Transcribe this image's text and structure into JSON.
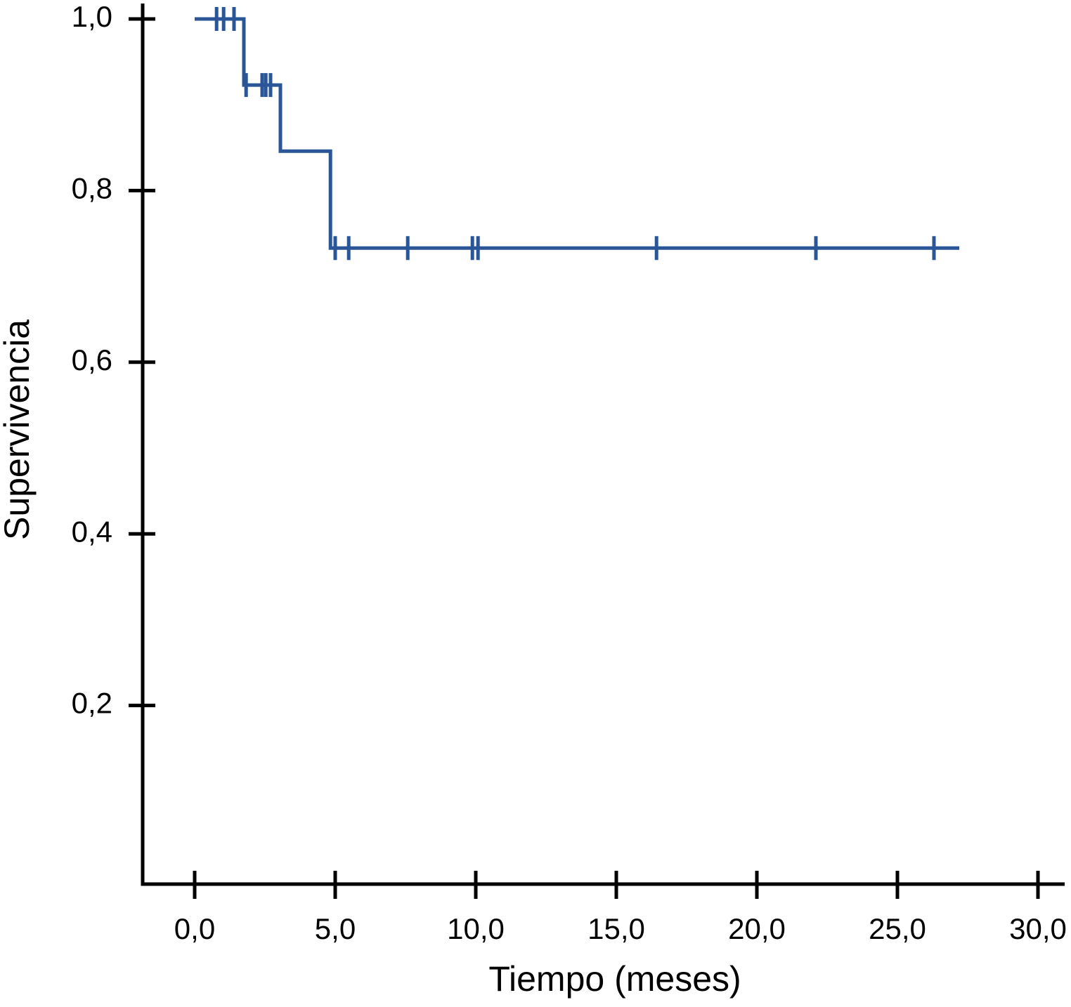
{
  "chart_data": {
    "type": "line",
    "x_label": "Tiempo (meses)",
    "y_label": "Supervivencia",
    "color": "#2a5597",
    "x": [
      0,
      1.75,
      1.75,
      3.05,
      3.05,
      4.83,
      4.83,
      27.2
    ],
    "values": [
      1,
      1,
      0.923,
      0.923,
      0.846,
      0.846,
      0.733,
      0.733
    ],
    "censored": {
      "x": [
        0.78,
        1.03,
        1.4,
        1.83,
        2.4,
        2.53,
        2.7,
        5.0,
        5.48,
        7.58,
        9.88,
        10.08,
        16.43,
        22.1,
        26.3
      ],
      "values": [
        1,
        1,
        1,
        0.923,
        0.923,
        0.923,
        0.923,
        0.733,
        0.733,
        0.733,
        0.733,
        0.733,
        0.733,
        0.733,
        0.733
      ]
    },
    "xlim": [
      -1.85,
      30.95
    ],
    "ylim": [
      0,
      1
    ],
    "xticks": [
      {
        "value": 0,
        "label": "0,0"
      },
      {
        "value": 5,
        "label": "5,0"
      },
      {
        "value": 10,
        "label": "10,0"
      },
      {
        "value": 15,
        "label": "15,0"
      },
      {
        "value": 20,
        "label": "20,0"
      },
      {
        "value": 25,
        "label": "25,0"
      },
      {
        "value": 30,
        "label": "30,0"
      }
    ],
    "yticks": [
      {
        "value": 0.2,
        "label": "0,2"
      },
      {
        "value": 0.4,
        "label": "0,4"
      },
      {
        "value": 0.6,
        "label": "0,6"
      },
      {
        "value": 0.8,
        "label": "0,8"
      },
      {
        "value": 1,
        "label": "1,0"
      }
    ]
  }
}
